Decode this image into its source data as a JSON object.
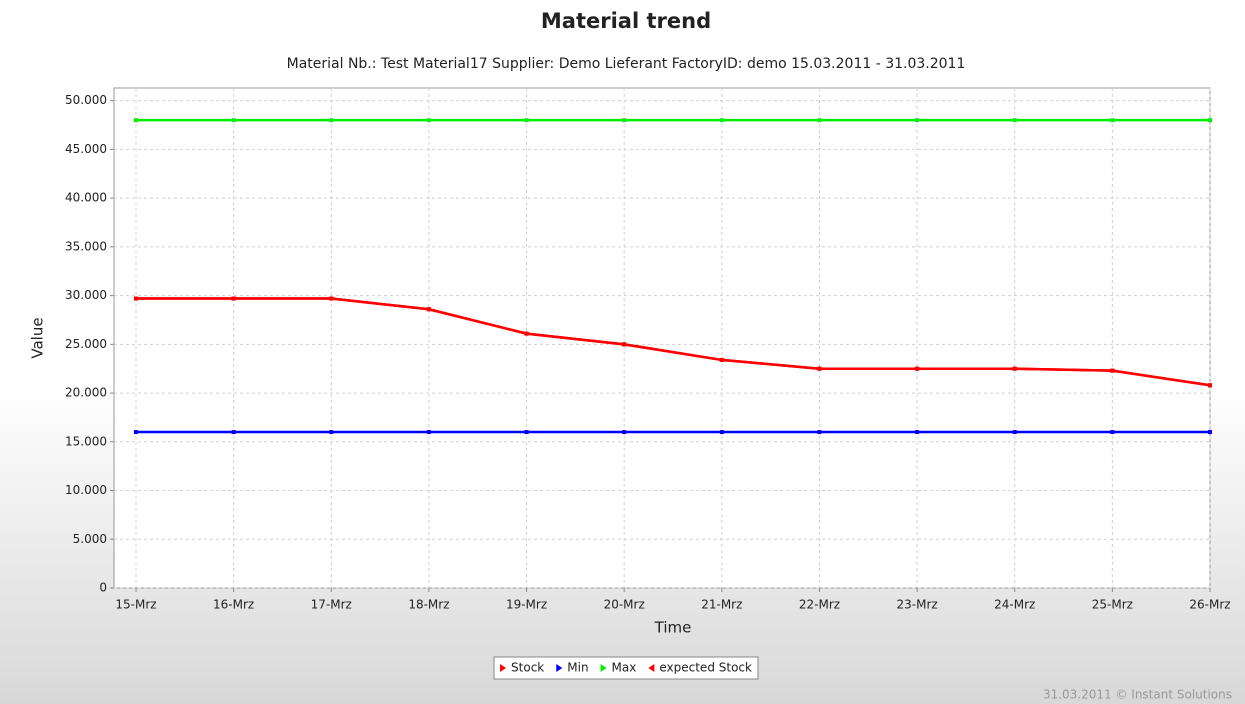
{
  "chart_data": {
    "type": "line",
    "title": "Material trend",
    "subtitle": "Material Nb.: Test Material17   Supplier: Demo Lieferant   FactoryID: demo   15.03.2011 - 31.03.2011",
    "x_label": "Time",
    "y_label": "Value",
    "footer": "31.03.2011  © Instant Solutions",
    "categories": [
      "15-Mrz",
      "16-Mrz",
      "17-Mrz",
      "18-Mrz",
      "19-Mrz",
      "20-Mrz",
      "21-Mrz",
      "22-Mrz",
      "23-Mrz",
      "24-Mrz",
      "25-Mrz",
      "26-Mrz"
    ],
    "series": [
      {
        "name": "Stock",
        "color": "#ff0000",
        "marker": "triangle-right",
        "values": [
          29700,
          29700,
          29700,
          28600,
          26100,
          25000,
          23400,
          22500,
          22500,
          22500,
          22300,
          20800
        ]
      },
      {
        "name": "Min",
        "color": "#0000ff",
        "marker": "triangle-right",
        "values": [
          16000,
          16000,
          16000,
          16000,
          16000,
          16000,
          16000,
          16000,
          16000,
          16000,
          16000,
          16000
        ]
      },
      {
        "name": "Max",
        "color": "#00ee00",
        "marker": "triangle-right",
        "values": [
          48000,
          48000,
          48000,
          48000,
          48000,
          48000,
          48000,
          48000,
          48000,
          48000,
          48000,
          48000
        ]
      },
      {
        "name": "expected Stock",
        "color": "#ff0000",
        "marker": "triangle-left",
        "values": [
          29700,
          29700,
          29700,
          28600,
          26100,
          25000,
          23400,
          22500,
          22500,
          22500,
          22300,
          20800
        ]
      }
    ],
    "ylim": [
      0,
      51300
    ],
    "yticks": [
      {
        "value": 0,
        "label": "0"
      },
      {
        "value": 5000,
        "label": "5.000"
      },
      {
        "value": 10000,
        "label": "10.000"
      },
      {
        "value": 15000,
        "label": "15.000"
      },
      {
        "value": 20000,
        "label": "20.000"
      },
      {
        "value": 25000,
        "label": "25.000"
      },
      {
        "value": 30000,
        "label": "30.000"
      },
      {
        "value": 35000,
        "label": "35.000"
      },
      {
        "value": 40000,
        "label": "40.000"
      },
      {
        "value": 45000,
        "label": "45.000"
      },
      {
        "value": 50000,
        "label": "50.000"
      }
    ],
    "grid": true,
    "legend": "bottom"
  }
}
